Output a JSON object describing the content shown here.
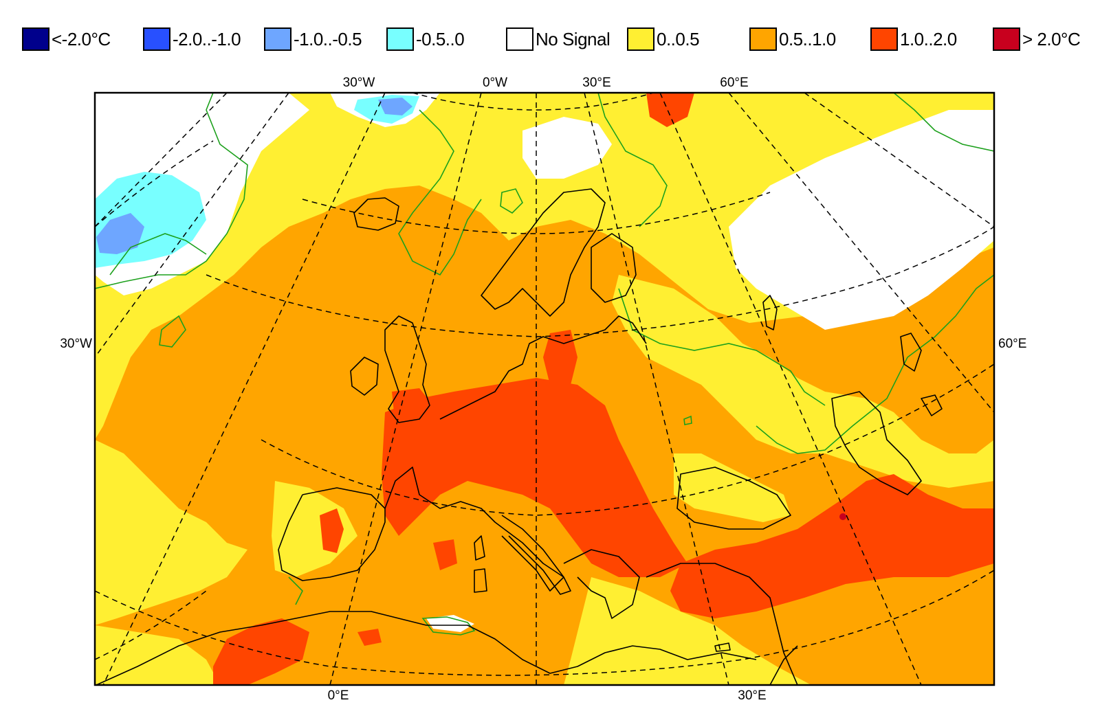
{
  "legend": {
    "items": [
      {
        "label": "<-2.0°C",
        "color": "#00008c"
      },
      {
        "label": "-2.0..-1.0",
        "color": "#2850ff"
      },
      {
        "label": "-1.0..-0.5",
        "color": "#6ea6ff"
      },
      {
        "label": "-0.5..0",
        "color": "#78ffff"
      },
      {
        "label": "No Signal",
        "color": "#ffffff"
      },
      {
        "label": "0..0.5",
        "color": "#ffef32"
      },
      {
        "label": "0.5..1.0",
        "color": "#ffa500"
      },
      {
        "label": "1.0..2.0",
        "color": "#ff4500"
      },
      {
        "label": "> 2.0°C",
        "color": "#c8001e"
      }
    ]
  },
  "map": {
    "top_labels": [
      "30°W",
      "0°W",
      "30°E",
      "60°E"
    ],
    "left_label": "30°W",
    "right_label": "60°E",
    "bottom_labels": [
      "0°E",
      "30°E"
    ]
  }
}
